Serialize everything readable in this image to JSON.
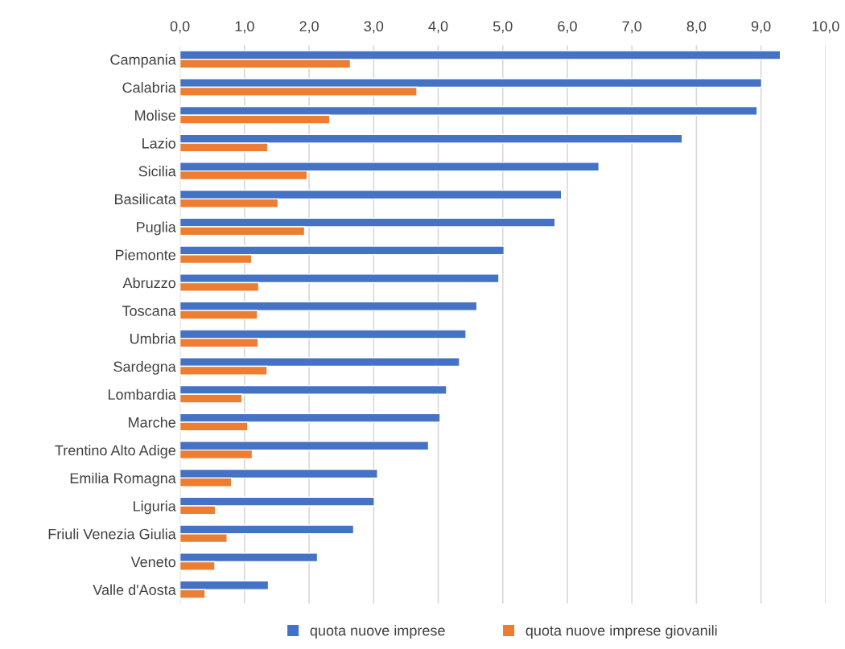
{
  "chart_data": {
    "type": "bar",
    "orientation": "horizontal",
    "categories": [
      "Campania",
      "Calabria",
      "Molise",
      "Lazio",
      "Sicilia",
      "Basilicata",
      "Puglia",
      "Piemonte",
      "Abruzzo",
      "Toscana",
      "Umbria",
      "Sardegna",
      "Lombardia",
      "Marche",
      "Trentino Alto Adige",
      "Emilia Romagna",
      "Liguria",
      "Friuli Venezia Giulia",
      "Veneto",
      "Valle d'Aosta"
    ],
    "series": [
      {
        "name": "quota nuove imprese",
        "color": "#4472c4",
        "values": [
          9.3,
          9.01,
          8.94,
          7.78,
          6.49,
          5.91,
          5.81,
          5.02,
          4.94,
          4.6,
          4.43,
          4.33,
          4.13,
          4.03,
          3.85,
          3.06,
          3.01,
          2.69,
          2.13,
          1.37
        ]
      },
      {
        "name": "quota nuove imprese giovanili",
        "color": "#ed7d31",
        "values": [
          2.64,
          3.67,
          2.32,
          1.36,
          1.97,
          1.52,
          1.93,
          1.11,
          1.22,
          1.2,
          1.21,
          1.35,
          0.96,
          1.05,
          1.12,
          0.8,
          0.55,
          0.73,
          0.54,
          0.39
        ]
      }
    ],
    "xlim": [
      0,
      10
    ],
    "xticks": [
      {
        "value": 0,
        "label": "0,0"
      },
      {
        "value": 1,
        "label": "1,0"
      },
      {
        "value": 2,
        "label": "2,0"
      },
      {
        "value": 3,
        "label": "3,0"
      },
      {
        "value": 4,
        "label": "4,0"
      },
      {
        "value": 5,
        "label": "5,0"
      },
      {
        "value": 6,
        "label": "6,0"
      },
      {
        "value": 7,
        "label": "7,0"
      },
      {
        "value": 8,
        "label": "8,0"
      },
      {
        "value": 9,
        "label": "9,0"
      },
      {
        "value": 10,
        "label": "10,0"
      }
    ],
    "grid": "x",
    "legend": "bottom"
  }
}
